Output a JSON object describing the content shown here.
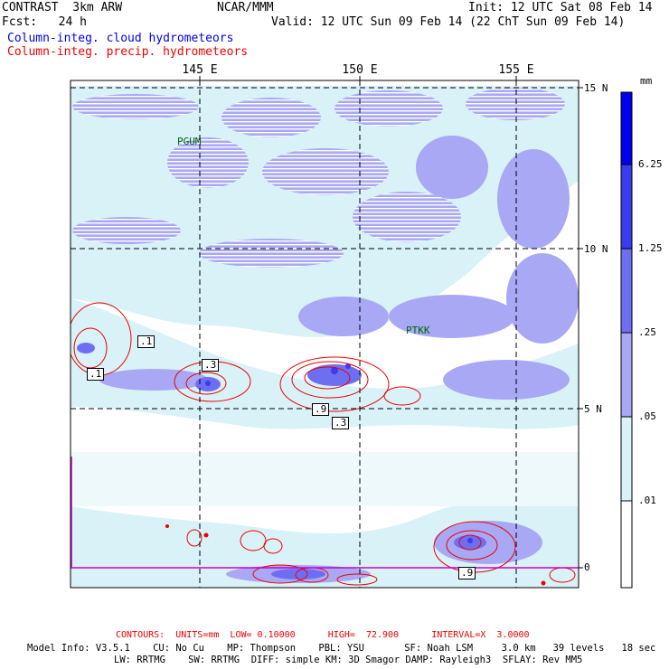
{
  "header": {
    "model": "CONTRAST  3km ARW",
    "org": "NCAR/MMM",
    "init": "Init: 12 UTC Sat 08 Feb 14",
    "fcst": "Fcst:   24 h",
    "valid": "Valid: 12 UTC Sun 09 Feb 14 (22 ChT Sun 09 Feb 14)",
    "field1": "Column-integ. cloud hydrometeors",
    "field2": "Column-integ. precip. hydrometeors"
  },
  "axes": {
    "lon_labels": [
      "145 E",
      "150 E",
      "155 E"
    ],
    "lat_labels": [
      "15 N",
      "10 N",
      "5 N",
      "0"
    ]
  },
  "stations": [
    "PGUM",
    "PTKK"
  ],
  "colorbar": {
    "unit": "mm",
    "levels": [
      "6.25",
      "1.25",
      ".25",
      ".05",
      ".01"
    ],
    "colors": [
      "#0000ee",
      "#3b3bf0",
      "#6e6ef2",
      "#a8a8f5",
      "#d8f2f8",
      "#ffffff"
    ]
  },
  "contour_labels": [
    ".1",
    ".1",
    ".3",
    ".9",
    ".3",
    ".9"
  ],
  "footer": {
    "contours": "CONTOURS:  UNITS=mm  LOW= 0.10000      HIGH=  72.900      INTERVAL=X  3.0000",
    "model_info_1": "Model Info: V3.5.1    CU: No Cu    MP: Thompson    PBL: YSU       SF: Noah LSM     3.0 km   39 levels   18 sec",
    "model_info_2": "LW: RRTMG    SW: RRTMG  DIFF: simple KM: 3D Smagor DAMP: Rayleigh3  SFLAY: Rev MM5"
  }
}
